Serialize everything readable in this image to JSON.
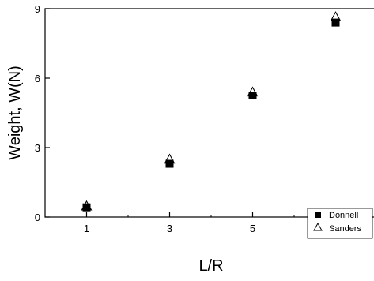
{
  "chart_data": {
    "type": "scatter",
    "xlabel": "L/R",
    "ylabel": "Weight, W(N)",
    "xlim": [
      0,
      8
    ],
    "ylim": [
      0,
      9
    ],
    "xticks": [
      1,
      3,
      5,
      7
    ],
    "yticks": [
      0,
      3,
      6,
      9
    ],
    "grid": false,
    "legend_position": "bottom-right",
    "series": [
      {
        "name": "Donnell",
        "marker": "filled-square",
        "color": "#000000",
        "x": [
          1,
          3,
          5,
          7
        ],
        "y": [
          0.42,
          2.3,
          5.25,
          8.4
        ]
      },
      {
        "name": "Sanders",
        "marker": "open-triangle",
        "color": "#000000",
        "x": [
          1,
          3,
          5,
          7
        ],
        "y": [
          0.48,
          2.5,
          5.4,
          8.65
        ]
      }
    ]
  }
}
